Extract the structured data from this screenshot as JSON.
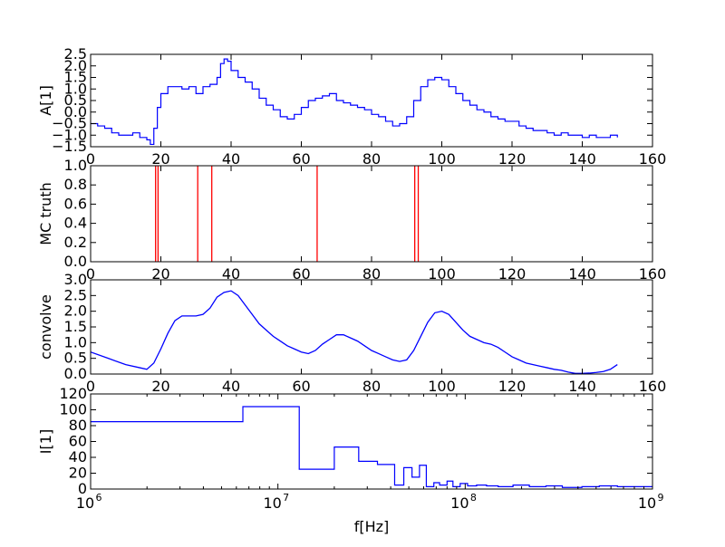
{
  "chart_data": [
    {
      "type": "line",
      "panel": "A",
      "style": "step",
      "color": "#0000ff",
      "ylabel": "A[1]",
      "xlabel": "",
      "xlim": [
        0,
        160
      ],
      "ylim": [
        -1.5,
        2.5
      ],
      "xticks": [
        0,
        20,
        40,
        60,
        80,
        100,
        120,
        140,
        160
      ],
      "yticks": [
        -1.5,
        -1.0,
        -0.5,
        0.0,
        0.5,
        1.0,
        1.5,
        2.0,
        2.5
      ],
      "xtick_labels": [
        "0",
        "20",
        "40",
        "60",
        "80",
        "100",
        "120",
        "140",
        "160"
      ],
      "ytick_labels": [
        "−1.5",
        "−1.0",
        "−0.5",
        "0.0",
        "0.5",
        "1.0",
        "1.5",
        "2.0",
        "2.5"
      ],
      "grid": false,
      "series": [
        {
          "x": [
            0,
            2,
            4,
            6,
            8,
            10,
            12,
            14,
            16,
            17,
            18,
            19,
            20,
            22,
            24,
            26,
            28,
            30,
            32,
            34,
            36,
            37,
            38,
            39,
            40,
            42,
            44,
            46,
            48,
            50,
            52,
            54,
            56,
            58,
            60,
            62,
            64,
            66,
            68,
            70,
            72,
            74,
            76,
            78,
            80,
            82,
            84,
            86,
            88,
            90,
            92,
            94,
            96,
            98,
            100,
            102,
            104,
            106,
            108,
            110,
            112,
            114,
            116,
            118,
            120,
            122,
            124,
            126,
            128,
            130,
            132,
            134,
            136,
            138,
            140,
            142,
            144,
            146,
            148,
            150
          ],
          "y": [
            -0.5,
            -0.6,
            -0.7,
            -0.9,
            -1.0,
            -1.0,
            -0.9,
            -1.1,
            -1.2,
            -1.4,
            -0.7,
            0.2,
            0.8,
            1.1,
            1.1,
            1.0,
            1.1,
            0.8,
            1.1,
            1.2,
            1.5,
            2.1,
            2.3,
            2.2,
            1.8,
            1.5,
            1.3,
            1.0,
            0.6,
            0.3,
            0.1,
            -0.2,
            -0.3,
            -0.1,
            0.2,
            0.5,
            0.6,
            0.7,
            0.8,
            0.5,
            0.4,
            0.3,
            0.2,
            0.1,
            -0.1,
            -0.2,
            -0.4,
            -0.6,
            -0.5,
            -0.2,
            0.5,
            1.1,
            1.4,
            1.5,
            1.4,
            1.1,
            0.8,
            0.5,
            0.3,
            0.1,
            0.0,
            -0.2,
            -0.3,
            -0.4,
            -0.4,
            -0.6,
            -0.7,
            -0.8,
            -0.8,
            -0.9,
            -1.0,
            -0.9,
            -1.0,
            -1.0,
            -1.1,
            -1.0,
            -1.1,
            -1.1,
            -1.0,
            -1.1
          ]
        }
      ]
    },
    {
      "type": "bar",
      "panel": "B",
      "style": "vertical-lines",
      "color": "#ff0000",
      "ylabel": "MC truth",
      "xlabel": "",
      "xlim": [
        0,
        160
      ],
      "ylim": [
        0.0,
        1.0
      ],
      "xticks": [
        0,
        20,
        40,
        60,
        80,
        100,
        120,
        140,
        160
      ],
      "yticks": [
        0.0,
        0.2,
        0.4,
        0.6,
        0.8,
        1.0
      ],
      "xtick_labels": [
        "0",
        "20",
        "40",
        "60",
        "80",
        "100",
        "120",
        "140",
        "160"
      ],
      "ytick_labels": [
        "0.0",
        "0.2",
        "0.4",
        "0.6",
        "0.8",
        "1.0"
      ],
      "grid": false,
      "x": [
        18.5,
        19.2,
        30.5,
        34.5,
        64.5,
        92.3,
        93.3
      ],
      "values": [
        1,
        1,
        1,
        1,
        1,
        1,
        1
      ]
    },
    {
      "type": "line",
      "panel": "C",
      "style": "line",
      "color": "#0000ff",
      "ylabel": "convolve",
      "xlabel": "",
      "xlim": [
        0,
        160
      ],
      "ylim": [
        0.0,
        3.0
      ],
      "xticks": [
        0,
        20,
        40,
        60,
        80,
        100,
        120,
        140,
        160
      ],
      "yticks": [
        0.0,
        0.5,
        1.0,
        1.5,
        2.0,
        2.5,
        3.0
      ],
      "xtick_labels": [
        "0",
        "20",
        "40",
        "60",
        "80",
        "100",
        "120",
        "140",
        "160"
      ],
      "ytick_labels": [
        "0.0",
        "0.5",
        "1.0",
        "1.5",
        "2.0",
        "2.5",
        "3.0"
      ],
      "grid": false,
      "series": [
        {
          "x": [
            0,
            5,
            10,
            14,
            16,
            18,
            20,
            22,
            24,
            26,
            28,
            30,
            32,
            34,
            36,
            38,
            40,
            42,
            44,
            46,
            48,
            50,
            52,
            54,
            56,
            58,
            60,
            62,
            64,
            66,
            68,
            70,
            72,
            74,
            76,
            78,
            80,
            82,
            84,
            86,
            88,
            90,
            92,
            94,
            96,
            98,
            100,
            102,
            104,
            106,
            108,
            110,
            112,
            114,
            116,
            118,
            120,
            122,
            124,
            126,
            128,
            130,
            132,
            134,
            136,
            138,
            140,
            142,
            144,
            146,
            148,
            150
          ],
          "y": [
            0.7,
            0.5,
            0.3,
            0.2,
            0.15,
            0.35,
            0.8,
            1.3,
            1.7,
            1.85,
            1.85,
            1.85,
            1.9,
            2.1,
            2.45,
            2.6,
            2.65,
            2.5,
            2.2,
            1.9,
            1.6,
            1.4,
            1.2,
            1.05,
            0.9,
            0.8,
            0.7,
            0.65,
            0.75,
            0.95,
            1.1,
            1.25,
            1.25,
            1.15,
            1.05,
            0.9,
            0.75,
            0.65,
            0.55,
            0.45,
            0.4,
            0.45,
            0.75,
            1.2,
            1.65,
            1.95,
            2.0,
            1.9,
            1.65,
            1.4,
            1.2,
            1.1,
            1.0,
            0.95,
            0.85,
            0.7,
            0.55,
            0.45,
            0.35,
            0.3,
            0.25,
            0.2,
            0.15,
            0.12,
            0.06,
            0.02,
            0.02,
            0.03,
            0.05,
            0.08,
            0.15,
            0.3
          ]
        }
      ]
    },
    {
      "type": "line",
      "panel": "D",
      "style": "step",
      "color": "#0000ff",
      "ylabel": "I[1]",
      "xlabel": "f[Hz]",
      "xscale": "log",
      "xlim": [
        1000000,
        1000000000
      ],
      "ylim": [
        0,
        120
      ],
      "xticks": [
        1000000,
        10000000,
        100000000,
        1000000000
      ],
      "yticks": [
        0,
        20,
        40,
        60,
        80,
        100,
        120
      ],
      "xtick_base": "10",
      "xtick_exponents": [
        "6",
        "7",
        "8",
        "9"
      ],
      "ytick_labels": [
        "0",
        "20",
        "40",
        "60",
        "80",
        "100",
        "120"
      ],
      "grid": false,
      "series": [
        {
          "x": [
            1000000,
            6500000,
            13000000,
            20000000,
            27000000,
            34000000,
            42000000,
            47000000,
            52000000,
            57000000,
            62000000,
            68000000,
            73000000,
            80000000,
            86000000,
            94000000,
            103000000,
            115000000,
            130000000,
            150000000,
            180000000,
            220000000,
            270000000,
            330000000,
            420000000,
            520000000,
            650000000,
            800000000,
            1000000000
          ],
          "y": [
            85,
            104,
            25,
            53,
            35,
            31,
            5,
            27,
            15,
            30,
            3,
            8,
            5,
            10,
            3,
            7,
            4,
            5,
            4,
            3,
            5,
            3,
            4,
            2,
            3,
            4,
            3,
            3,
            3
          ]
        }
      ]
    }
  ]
}
